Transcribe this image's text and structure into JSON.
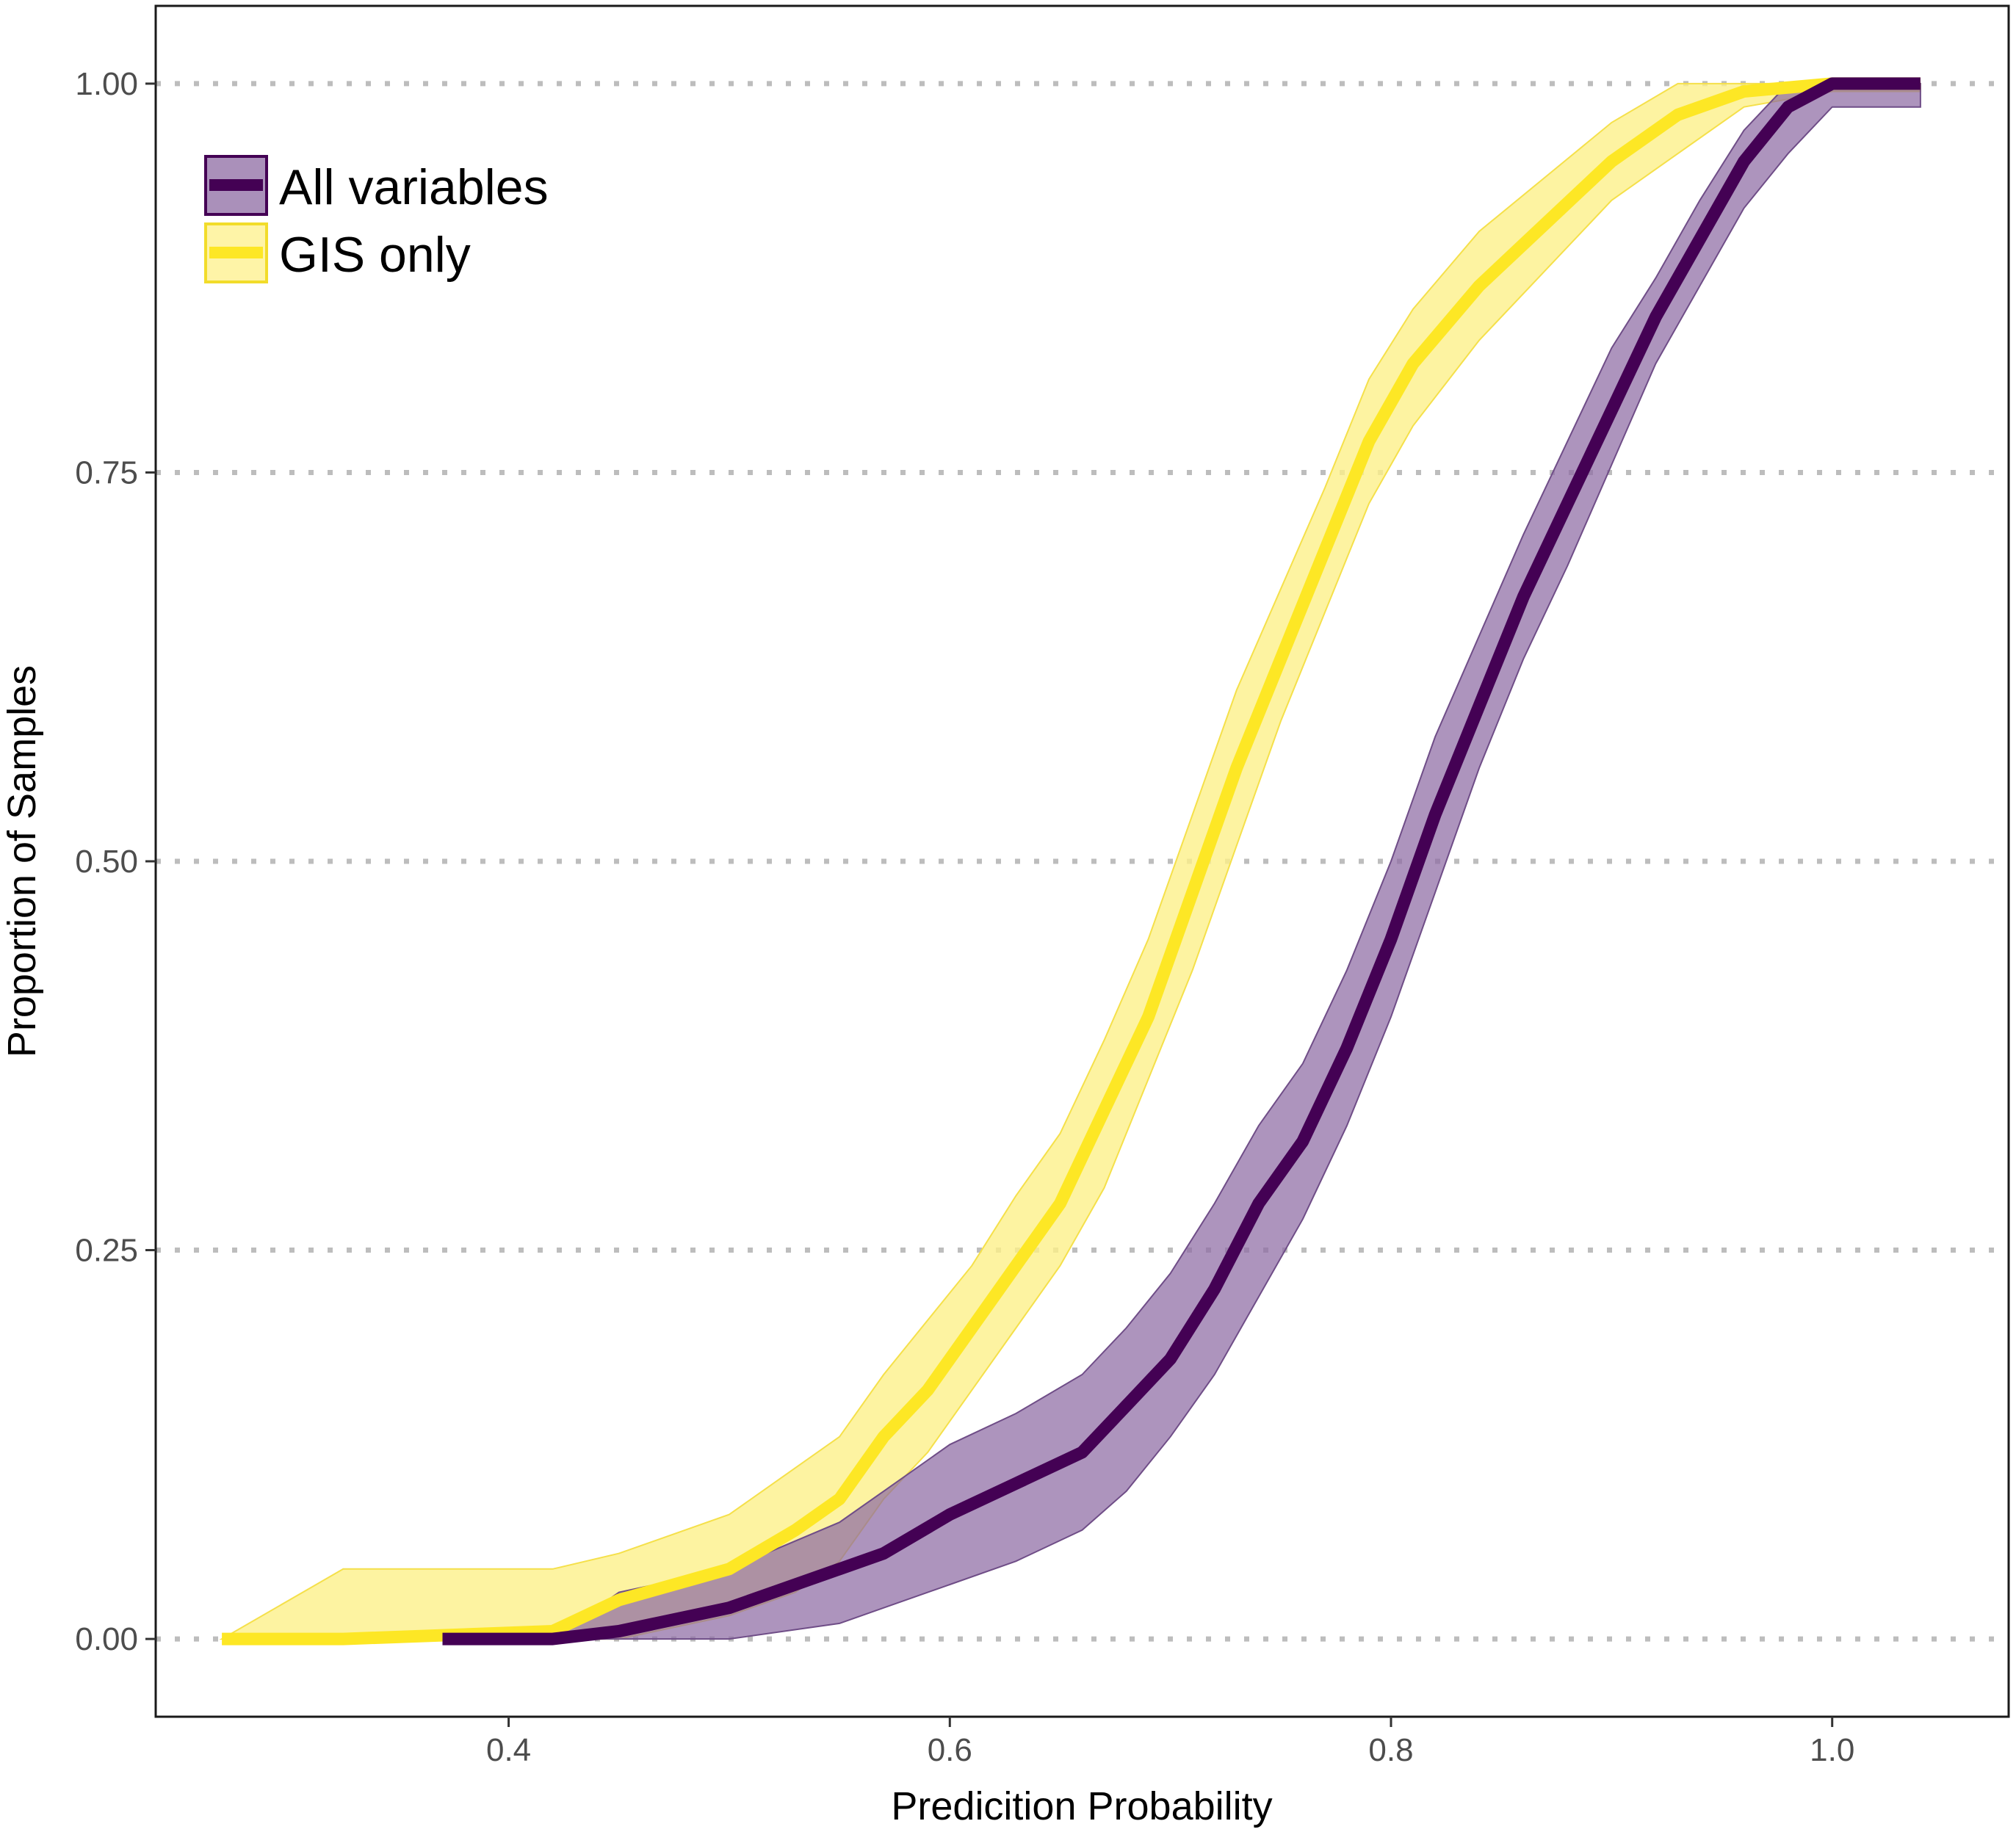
{
  "chart_data": {
    "type": "line",
    "subtype": "ecdf-with-confidence-band",
    "title": "",
    "xlabel": "Predicition Probability",
    "ylabel": "Proportion of Samples",
    "xlim": [
      0.24,
      1.08
    ],
    "ylim": [
      -0.05,
      1.05
    ],
    "x_ticks": [
      0.4,
      0.6,
      0.8,
      1.0
    ],
    "x_tick_labels": [
      "0.4",
      "0.6",
      "0.8",
      "1.0"
    ],
    "y_ticks": [
      0.0,
      0.25,
      0.5,
      0.75,
      1.0
    ],
    "y_tick_labels": [
      "0.00",
      "0.25",
      "0.50",
      "0.75",
      "1.00"
    ],
    "grid": {
      "horizontal": true,
      "vertical": false,
      "style": "dotted",
      "color": "#bdbdbd"
    },
    "legend": {
      "position": "top-left"
    },
    "series": [
      {
        "name": "All variables",
        "color": "#440154",
        "band_fill": "#8d6ba3",
        "band_stroke": "#6f4d87",
        "x": [
          0.37,
          0.42,
          0.45,
          0.5,
          0.55,
          0.57,
          0.6,
          0.63,
          0.66,
          0.68,
          0.7,
          0.72,
          0.74,
          0.76,
          0.78,
          0.8,
          0.82,
          0.84,
          0.86,
          0.88,
          0.9,
          0.92,
          0.94,
          0.96,
          0.98,
          1.0,
          1.04
        ],
        "y": [
          0.0,
          0.0,
          0.005,
          0.02,
          0.045,
          0.055,
          0.08,
          0.1,
          0.12,
          0.15,
          0.18,
          0.225,
          0.28,
          0.32,
          0.38,
          0.45,
          0.53,
          0.6,
          0.67,
          0.73,
          0.79,
          0.85,
          0.9,
          0.95,
          0.985,
          1.0,
          1.0
        ],
        "lower": [
          0.0,
          0.0,
          0.0,
          0.0,
          0.01,
          0.02,
          0.035,
          0.05,
          0.07,
          0.095,
          0.13,
          0.17,
          0.22,
          0.27,
          0.33,
          0.4,
          0.48,
          0.56,
          0.63,
          0.69,
          0.755,
          0.82,
          0.87,
          0.92,
          0.955,
          0.985,
          0.985
        ],
        "upper": [
          0.0,
          0.0,
          0.03,
          0.045,
          0.075,
          0.095,
          0.125,
          0.145,
          0.17,
          0.2,
          0.235,
          0.28,
          0.33,
          0.37,
          0.43,
          0.5,
          0.58,
          0.645,
          0.71,
          0.77,
          0.83,
          0.875,
          0.925,
          0.97,
          1.0,
          1.0,
          1.0
        ]
      },
      {
        "name": "GIS only",
        "color": "#fde725",
        "band_fill": "#fdf08a",
        "band_stroke": "#f5e04a",
        "x": [
          0.27,
          0.325,
          0.42,
          0.45,
          0.5,
          0.53,
          0.55,
          0.57,
          0.59,
          0.61,
          0.63,
          0.65,
          0.67,
          0.69,
          0.71,
          0.73,
          0.75,
          0.77,
          0.79,
          0.81,
          0.84,
          0.87,
          0.9,
          0.93,
          0.96,
          1.0,
          1.04
        ],
        "y": [
          0.0,
          0.0,
          0.005,
          0.025,
          0.045,
          0.07,
          0.09,
          0.13,
          0.16,
          0.2,
          0.24,
          0.28,
          0.34,
          0.4,
          0.48,
          0.56,
          0.63,
          0.7,
          0.77,
          0.82,
          0.87,
          0.91,
          0.95,
          0.98,
          0.995,
          1.0,
          1.0
        ],
        "lower": [
          0.0,
          0.0,
          0.0,
          0.0,
          0.015,
          0.03,
          0.05,
          0.09,
          0.12,
          0.16,
          0.2,
          0.24,
          0.29,
          0.36,
          0.43,
          0.51,
          0.59,
          0.66,
          0.73,
          0.78,
          0.835,
          0.88,
          0.925,
          0.955,
          0.985,
          0.995,
          0.995
        ],
        "upper": [
          0.0,
          0.045,
          0.045,
          0.055,
          0.08,
          0.11,
          0.13,
          0.17,
          0.205,
          0.24,
          0.285,
          0.325,
          0.385,
          0.45,
          0.53,
          0.61,
          0.675,
          0.74,
          0.81,
          0.855,
          0.905,
          0.94,
          0.975,
          1.0,
          1.0,
          1.0,
          1.0
        ]
      }
    ]
  }
}
